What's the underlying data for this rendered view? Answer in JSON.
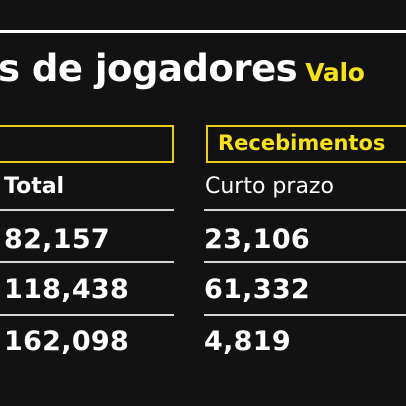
{
  "title": {
    "main": "s de jogadores",
    "accent": "Valo"
  },
  "groups": {
    "left_label": "",
    "right_label": "Recebimentos"
  },
  "columns": {
    "left_header": "Total",
    "right_header": "Curto prazo"
  },
  "rows": [
    {
      "total": "82,157",
      "short_term": "23,106"
    },
    {
      "total": "118,438",
      "short_term": "61,332"
    },
    {
      "total": "162,098",
      "short_term": "4,819"
    }
  ],
  "colors": {
    "background": "#121212",
    "accent": "#f5e11c",
    "text": "#ffffff"
  }
}
